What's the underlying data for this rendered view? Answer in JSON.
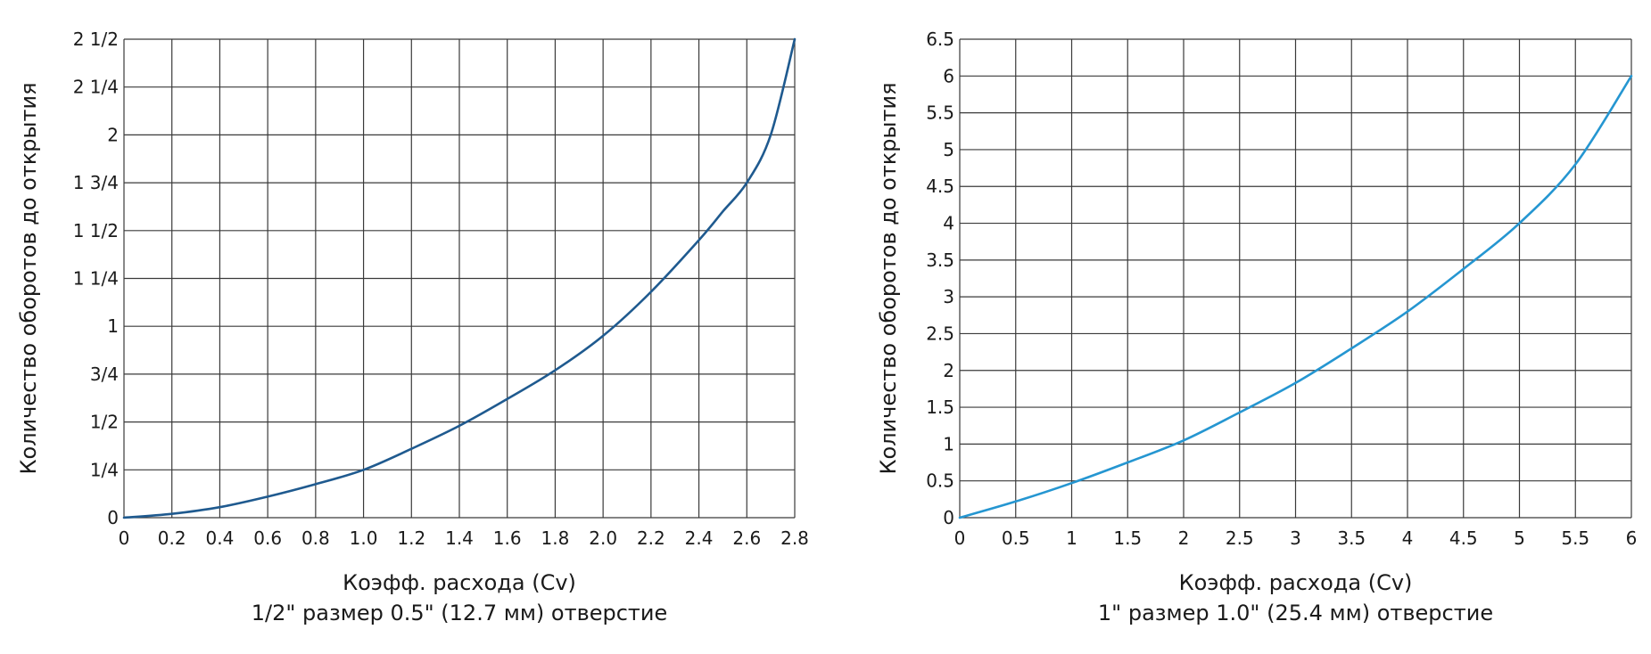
{
  "chart_data": [
    {
      "type": "line",
      "xlabel": "Коэфф. расхода (Cv)",
      "subtitle": "1/2\" размер 0.5\" (12.7 мм) отверстие",
      "ylabel": "Количество оборотов до открытия",
      "xlim": [
        0,
        2.8
      ],
      "ylim": [
        0,
        2.5
      ],
      "x_ticks": [
        "0",
        "0.2",
        "0.4",
        "0.6",
        "0.8",
        "1.0",
        "1.2",
        "1.4",
        "1.6",
        "1.8",
        "2.0",
        "2.2",
        "2.4",
        "2.6",
        "2.8"
      ],
      "y_ticks": [
        "0",
        "1/4",
        "1/2",
        "3/4",
        "1",
        "1 1/4",
        "1 1/2",
        "1 3/4",
        "2",
        "2 1/4",
        "2 1/2"
      ],
      "grid": true,
      "series": [
        {
          "color": "#1f5a8f",
          "points": [
            [
              0,
              0
            ],
            [
              0.2,
              0.02
            ],
            [
              0.4,
              0.055
            ],
            [
              0.6,
              0.11
            ],
            [
              0.8,
              0.175
            ],
            [
              1.0,
              0.25
            ],
            [
              1.2,
              0.36
            ],
            [
              1.4,
              0.48
            ],
            [
              1.6,
              0.62
            ],
            [
              1.8,
              0.77
            ],
            [
              2.0,
              0.95
            ],
            [
              2.2,
              1.18
            ],
            [
              2.4,
              1.45
            ],
            [
              2.5,
              1.6
            ],
            [
              2.6,
              1.75
            ],
            [
              2.7,
              2.0
            ],
            [
              2.8,
              2.5
            ]
          ]
        }
      ]
    },
    {
      "type": "line",
      "xlabel": "Коэфф. расхода (Cv)",
      "subtitle": "1\" размер 1.0\" (25.4 мм) отверстие",
      "ylabel": "Количество оборотов до открытия",
      "xlim": [
        0,
        6
      ],
      "ylim": [
        0,
        6.5
      ],
      "x_ticks": [
        "0",
        "0.5",
        "1",
        "1.5",
        "2",
        "2.5",
        "3",
        "3.5",
        "4",
        "4.5",
        "5",
        "5.5",
        "6"
      ],
      "y_ticks": [
        "0",
        "0.5",
        "1",
        "1.5",
        "2",
        "2.5",
        "3",
        "3.5",
        "4",
        "4.5",
        "5",
        "5.5",
        "6",
        "6.5"
      ],
      "grid": true,
      "series": [
        {
          "color": "#2596d1",
          "points": [
            [
              0,
              0
            ],
            [
              0.5,
              0.22
            ],
            [
              1.0,
              0.47
            ],
            [
              1.5,
              0.75
            ],
            [
              2.0,
              1.05
            ],
            [
              2.5,
              1.43
            ],
            [
              3.0,
              1.83
            ],
            [
              3.5,
              2.3
            ],
            [
              4.0,
              2.8
            ],
            [
              4.5,
              3.38
            ],
            [
              5.0,
              4.0
            ],
            [
              5.5,
              4.8
            ],
            [
              6.0,
              6.0
            ]
          ]
        }
      ]
    }
  ]
}
